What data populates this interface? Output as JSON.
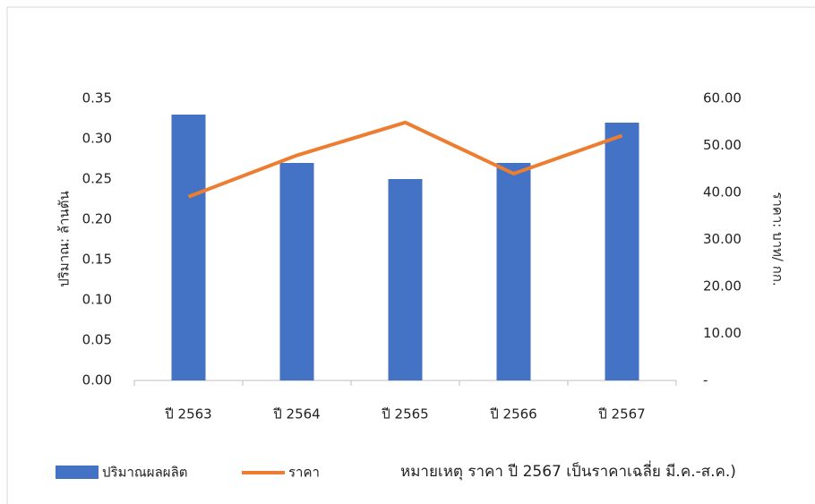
{
  "chart_data": {
    "type": "bar_line",
    "categories": [
      "ปี 2563",
      "ปี 2564",
      "ปี 2565",
      "ปี 2566",
      "ปี 2567"
    ],
    "series": [
      {
        "name": "ปริมาณผลผลิต",
        "type": "bar",
        "color": "#4472c4",
        "values": [
          0.33,
          0.27,
          0.25,
          0.27,
          0.32
        ]
      },
      {
        "name": "ราคา",
        "type": "line",
        "axis": "y2",
        "color": "#ed7d31",
        "values": [
          39.1,
          47.9,
          54.9,
          44.0,
          52.1
        ]
      }
    ],
    "y_label": "ปริมาณ: ล้านตัน",
    "y2_label": "ราคา: บาท/ กก.",
    "ylim": [
      0,
      0.35
    ],
    "yticks": [
      {
        "value": 0,
        "label": "0.00"
      },
      {
        "value": 0.05,
        "label": "0.05"
      },
      {
        "value": 0.1,
        "label": "0.10"
      },
      {
        "value": 0.15,
        "label": "0.15"
      },
      {
        "value": 0.2,
        "label": "0.20"
      },
      {
        "value": 0.25,
        "label": "0.25"
      },
      {
        "value": 0.3,
        "label": "0.30"
      },
      {
        "value": 0.35,
        "label": "0.35"
      }
    ],
    "y2lim": [
      0,
      60
    ],
    "y2ticks": [
      {
        "value": 0,
        "label": "-"
      },
      {
        "value": 10,
        "label": "10.00"
      },
      {
        "value": 20,
        "label": "20.00"
      },
      {
        "value": 30,
        "label": "30.00"
      },
      {
        "value": 40,
        "label": "40.00"
      },
      {
        "value": 50,
        "label": "50.00"
      },
      {
        "value": 60,
        "label": "60.00"
      }
    ],
    "note": "หมายเหตุ ราคา ปี 2567 เป็นราคาเฉลี่ย มี.ค.-ส.ค.)",
    "legend": "bottom"
  }
}
